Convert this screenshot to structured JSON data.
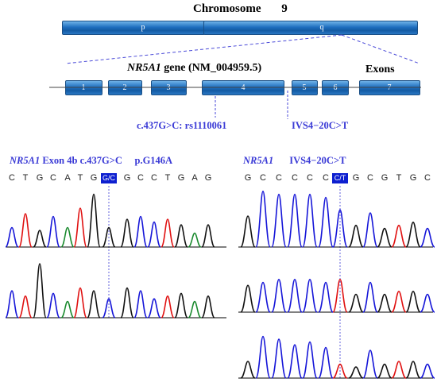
{
  "chromosome": {
    "label": "Chromosome",
    "number": "9",
    "arm_p": "p",
    "arm_q": "q"
  },
  "gene": {
    "symbol": "NR5A1",
    "text": " gene (NM_004959.5)",
    "exons_label": "Exons"
  },
  "exons": [
    "1",
    "2",
    "3",
    "4",
    "5",
    "6",
    "7"
  ],
  "mutations": {
    "m1": "c.437G>C: rs1110061",
    "m2": "IVS4−20C>T"
  },
  "left_panel": {
    "gene": "NR5A1",
    "title": " Exon 4b c.437G>C     p.G146A",
    "bases_before": [
      "C",
      "T",
      "G",
      "C",
      "A",
      "T",
      "G"
    ],
    "highlight": "G/C",
    "bases_after": [
      "G",
      "C",
      "C",
      "T",
      "G",
      "A",
      "G"
    ]
  },
  "right_panel": {
    "gene": "NR5A1",
    "title": "IVS4−20C>T",
    "bases_before": [
      "G",
      "C",
      "C",
      "C",
      "C",
      "C"
    ],
    "highlight": "C/T",
    "bases_after": [
      "G",
      "C",
      "G",
      "T",
      "G",
      "C"
    ]
  },
  "colors": {
    "A": "#1a8a2e",
    "C": "#1515d8",
    "G": "#111111",
    "T": "#e01010",
    "accent": "#3a3ad6",
    "bar": "#1f6fbf"
  }
}
